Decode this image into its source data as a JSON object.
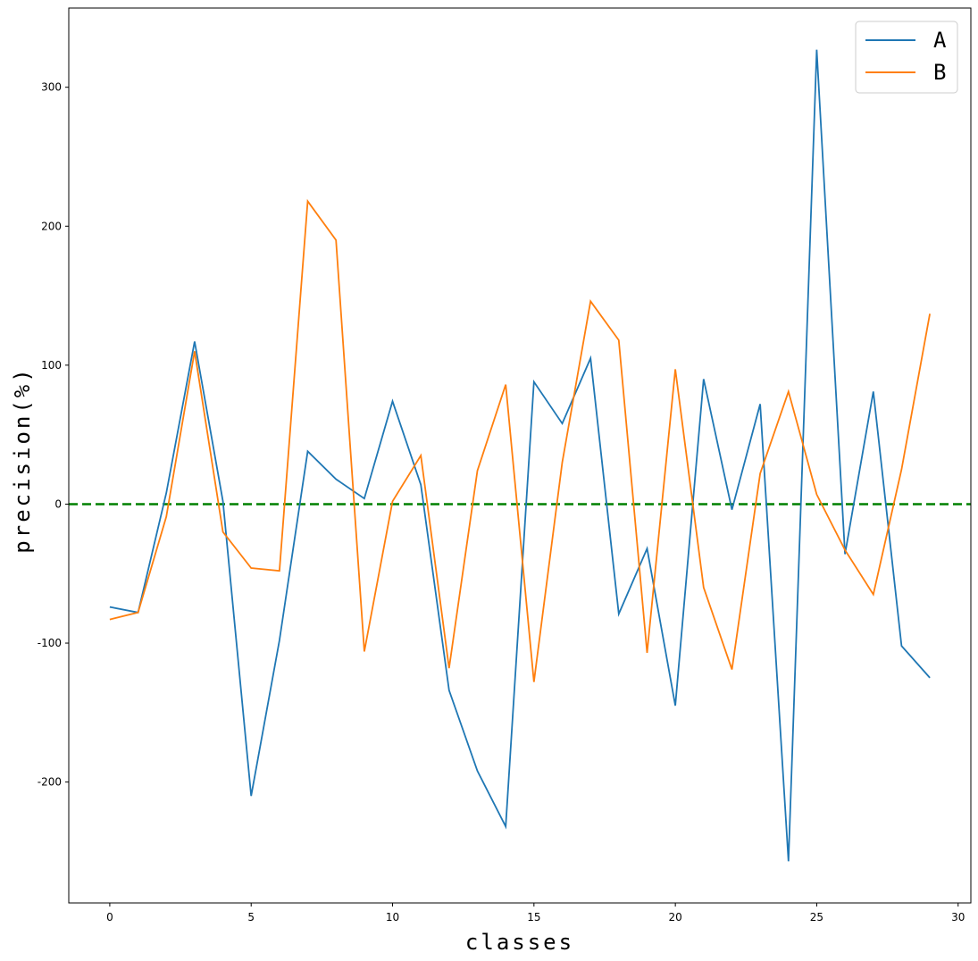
{
  "chart_data": {
    "type": "line",
    "title": "",
    "xlabel": "classes",
    "ylabel": "precision(%)",
    "xlim": [
      -1.45,
      30.45
    ],
    "ylim": [
      -287,
      357
    ],
    "xticks": [
      0,
      5,
      10,
      15,
      20,
      25,
      30
    ],
    "yticks": [
      -200,
      -100,
      0,
      100,
      200,
      300
    ],
    "grid": false,
    "legend_position": "top-right",
    "reference_line": {
      "y": 0,
      "style": "dashed",
      "color": "#008000"
    },
    "x": [
      0,
      1,
      2,
      3,
      4,
      5,
      6,
      7,
      8,
      9,
      10,
      11,
      12,
      13,
      14,
      15,
      16,
      17,
      18,
      19,
      20,
      21,
      22,
      23,
      24,
      25,
      26,
      27,
      28,
      29
    ],
    "series": [
      {
        "name": "A",
        "color": "#1f77b4",
        "values": [
          -74,
          -78,
          8,
          117,
          2,
          -210,
          -98,
          38,
          18,
          4,
          74,
          14,
          -134,
          -192,
          -232,
          88,
          58,
          105,
          -79,
          -32,
          -145,
          90,
          -4,
          72,
          -257,
          327,
          -36,
          81,
          -102,
          -125
        ]
      },
      {
        "name": "B",
        "color": "#ff7f0e",
        "values": [
          -83,
          -78,
          -9,
          110,
          -20,
          -46,
          -48,
          218,
          190,
          -106,
          2,
          35,
          -118,
          24,
          86,
          -128,
          30,
          146,
          118,
          -107,
          97,
          -60,
          -119,
          22,
          81,
          7,
          -33,
          -65,
          25,
          137
        ]
      }
    ]
  }
}
